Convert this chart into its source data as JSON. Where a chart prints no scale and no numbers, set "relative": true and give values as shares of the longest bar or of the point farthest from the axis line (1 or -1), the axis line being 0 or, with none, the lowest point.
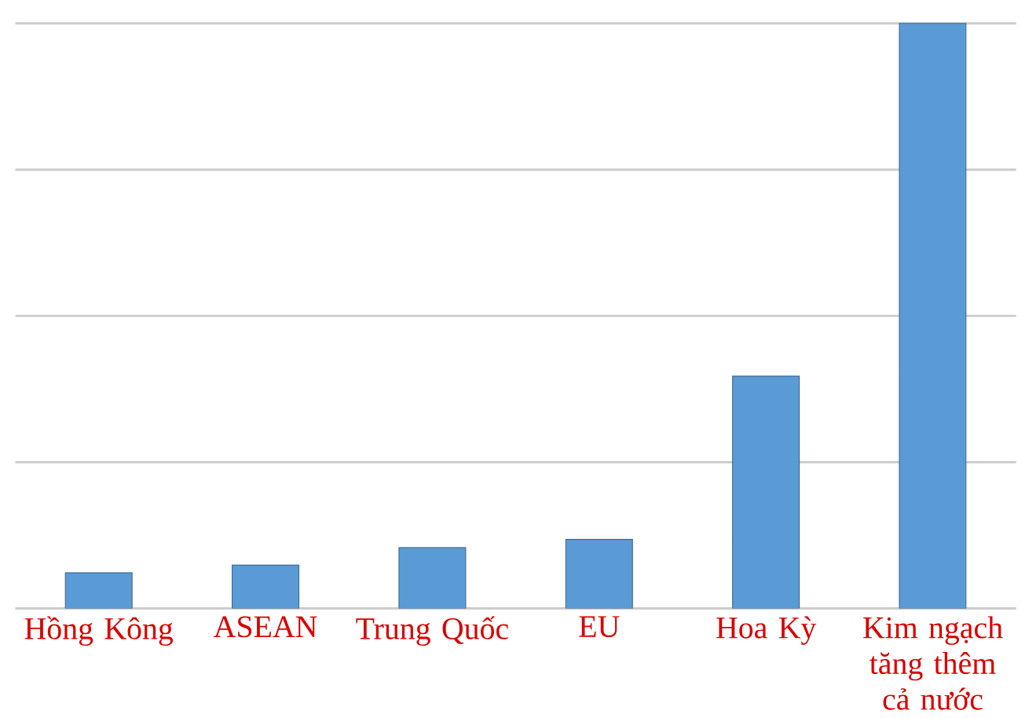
{
  "chart_data": {
    "type": "bar",
    "relative": true,
    "categories": [
      "Hồng Kông",
      "ASEAN",
      "Trung Quốc",
      "EU",
      "Hoa Kỳ",
      "Kim ngạch tăng thêm cả nước"
    ],
    "values": [
      0.061,
      0.074,
      0.104,
      0.118,
      0.397,
      1
    ],
    "color": "#5b9bd5",
    "grid": "y"
  }
}
